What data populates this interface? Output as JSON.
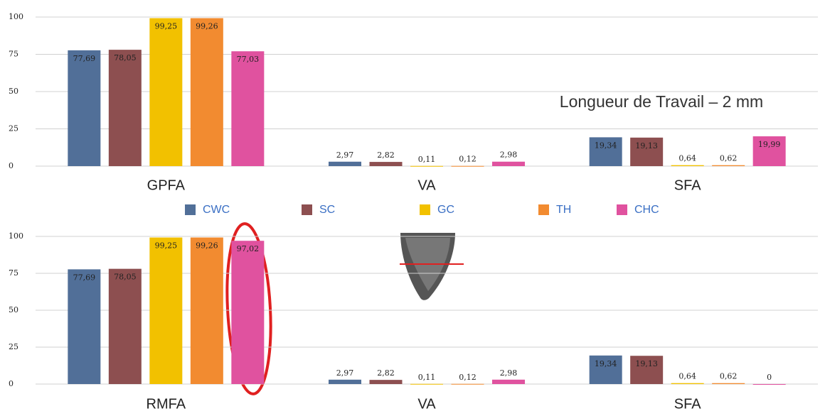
{
  "chart_data": [
    {
      "type": "bar",
      "annotation": "Longueur de Travail – 2 mm",
      "categories": [
        "GPFA",
        "VA",
        "SFA"
      ],
      "ylim": [
        0,
        100
      ],
      "yticks": [
        0,
        25,
        50,
        75,
        100
      ],
      "grid": true,
      "legend": "bottom",
      "series": [
        {
          "name": "CWC",
          "color": "#516f98",
          "values": [
            77.69,
            2.97,
            19.34
          ],
          "value_labels": [
            "77,69",
            "2,97",
            "19,34"
          ]
        },
        {
          "name": "SC",
          "color": "#8d4f50",
          "values": [
            78.05,
            2.82,
            19.13
          ],
          "value_labels": [
            "78,05",
            "2,82",
            "19,13"
          ]
        },
        {
          "name": "GC",
          "color": "#f2c100",
          "values": [
            99.25,
            0.11,
            0.64
          ],
          "value_labels": [
            "99,25",
            "0,11",
            "0,64"
          ]
        },
        {
          "name": "TH",
          "color": "#f28b30",
          "values": [
            99.26,
            0.12,
            0.62
          ],
          "value_labels": [
            "99,26",
            "0,12",
            "0,62"
          ]
        },
        {
          "name": "CHC",
          "color": "#e0529f",
          "values": [
            77.03,
            2.98,
            19.99
          ],
          "value_labels": [
            "77,03",
            "2,98",
            "19,99"
          ]
        }
      ]
    },
    {
      "type": "bar",
      "categories": [
        "RMFA",
        "VA",
        "SFA"
      ],
      "ylim": [
        0,
        100
      ],
      "yticks": [
        0,
        25,
        50,
        75,
        100
      ],
      "grid": true,
      "series": [
        {
          "color": "#516f98",
          "values": [
            77.69,
            2.97,
            19.34
          ],
          "value_labels": [
            "77,69",
            "2,97",
            "19,34"
          ]
        },
        {
          "color": "#8d4f50",
          "values": [
            78.05,
            2.82,
            19.13
          ],
          "value_labels": [
            "78,05",
            "2,82",
            "19,13"
          ]
        },
        {
          "color": "#f2c100",
          "values": [
            99.25,
            0.11,
            0.64
          ],
          "value_labels": [
            "99,25",
            "0,11",
            "0,64"
          ]
        },
        {
          "color": "#f28b30",
          "values": [
            99.26,
            0.12,
            0.62
          ],
          "value_labels": [
            "99,26",
            "0,12",
            "0,62"
          ]
        },
        {
          "color": "#e0529f",
          "values": [
            97.02,
            2.98,
            0
          ],
          "value_labels": [
            "97,02",
            "2,98",
            "0"
          ]
        }
      ]
    }
  ]
}
